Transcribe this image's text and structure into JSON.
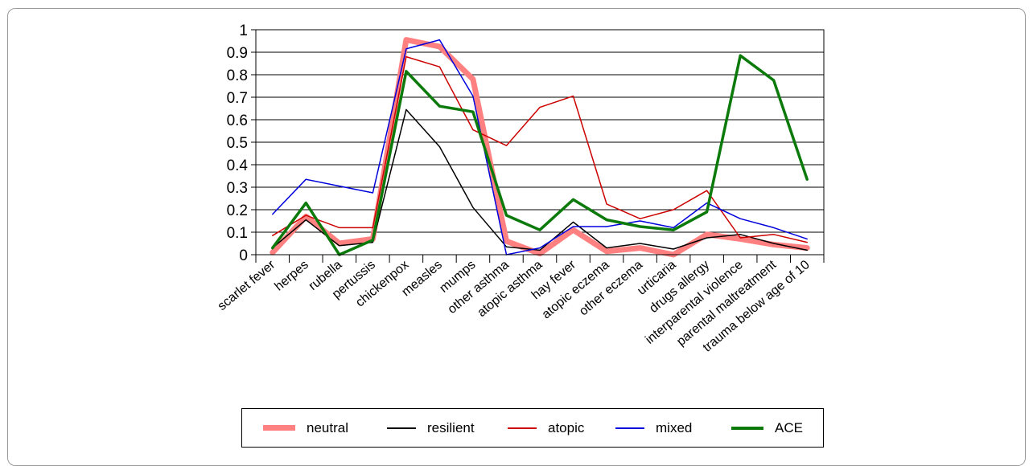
{
  "chart_data": {
    "type": "line",
    "categories": [
      "scarlet fever",
      "herpes",
      "rubella",
      "pertussis",
      "chickenpox",
      "measles",
      "mumps",
      "other asthma",
      "atopic asthma",
      "hay fever",
      "atopic eczema",
      "other eczema",
      "urticaria",
      "drugs allergy",
      "interparental violence",
      "parental maltreatment",
      "trauma below age of 10"
    ],
    "y_ticks": [
      "0",
      "0.1",
      "0.2",
      "0.3",
      "0.4",
      "0.5",
      "0.6",
      "0.7",
      "0.8",
      "0.9",
      "1"
    ],
    "ylim": [
      0,
      1
    ],
    "grid": "horizontal",
    "legend_position": "bottom",
    "series": [
      {
        "name": "neutral",
        "color": "#ff8080",
        "width": 7,
        "values": [
          0.01,
          0.17,
          0.05,
          0.07,
          0.955,
          0.925,
          0.78,
          0.06,
          0.005,
          0.11,
          0.015,
          0.03,
          0.0,
          0.09,
          0.07,
          0.045,
          0.03
        ]
      },
      {
        "name": "resilient",
        "color": "#000000",
        "width": 1.5,
        "values": [
          0.03,
          0.155,
          0.04,
          0.055,
          0.645,
          0.48,
          0.21,
          0.035,
          0.02,
          0.145,
          0.03,
          0.05,
          0.025,
          0.075,
          0.09,
          0.05,
          0.02
        ]
      },
      {
        "name": "atopic",
        "color": "#cc0000",
        "width": 1.5,
        "values": [
          0.085,
          0.175,
          0.12,
          0.12,
          0.88,
          0.835,
          0.555,
          0.485,
          0.655,
          0.705,
          0.225,
          0.16,
          0.2,
          0.285,
          0.075,
          0.09,
          0.055
        ]
      },
      {
        "name": "mixed",
        "color": "#0000dd",
        "width": 1.5,
        "values": [
          0.18,
          0.335,
          0.305,
          0.275,
          0.915,
          0.955,
          0.705,
          0.0,
          0.03,
          0.125,
          0.125,
          0.15,
          0.12,
          0.23,
          0.16,
          0.12,
          0.07
        ]
      },
      {
        "name": "ACE",
        "color": "#0b7a0b",
        "width": 3.5,
        "values": [
          0.03,
          0.23,
          0.0,
          0.065,
          0.815,
          0.66,
          0.635,
          0.175,
          0.11,
          0.245,
          0.155,
          0.125,
          0.11,
          0.19,
          0.885,
          0.775,
          0.335
        ]
      }
    ]
  }
}
